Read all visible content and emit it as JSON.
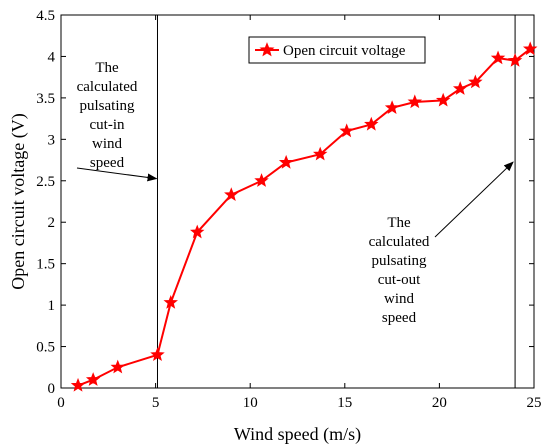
{
  "chart_data": {
    "type": "line",
    "xlabel": "Wind speed (m/s)",
    "ylabel": "Open circuit voltage (V)",
    "xlim": [
      0,
      25
    ],
    "ylim": [
      0,
      4.5
    ],
    "xticks": [
      0,
      5,
      10,
      15,
      20,
      25
    ],
    "yticks": [
      0,
      0.5,
      1,
      1.5,
      2,
      2.5,
      3,
      3.5,
      4,
      4.5
    ],
    "grid": false,
    "legend_position": "top-right",
    "series": [
      {
        "name": "Open circuit voltage",
        "color": "#ff0000",
        "marker": "star",
        "x": [
          0.9,
          1.7,
          3.0,
          5.1,
          5.8,
          7.2,
          9.0,
          10.6,
          11.9,
          13.7,
          15.1,
          16.4,
          17.5,
          18.7,
          20.2,
          21.1,
          21.9,
          23.1,
          24.0,
          24.8
        ],
        "y": [
          0.03,
          0.1,
          0.25,
          0.4,
          1.03,
          1.88,
          2.33,
          2.5,
          2.72,
          2.82,
          3.1,
          3.18,
          3.38,
          3.45,
          3.47,
          3.61,
          3.69,
          3.98,
          3.95,
          4.09
        ]
      }
    ],
    "vlines": [
      {
        "x": 5.1,
        "color": "#000000"
      },
      {
        "x": 24.0,
        "color": "#000000"
      }
    ],
    "annotations": [
      {
        "lines": [
          "The",
          "calculated",
          "pulsating",
          "cut-in",
          "wind",
          "speed"
        ],
        "arrow_to": {
          "x": 5.1,
          "y": 2.55
        }
      },
      {
        "lines": [
          "The",
          "calculated",
          "pulsating",
          "cut-out",
          "wind",
          "speed"
        ],
        "arrow_to": {
          "x": 24.0,
          "y": 2.75
        }
      }
    ]
  }
}
